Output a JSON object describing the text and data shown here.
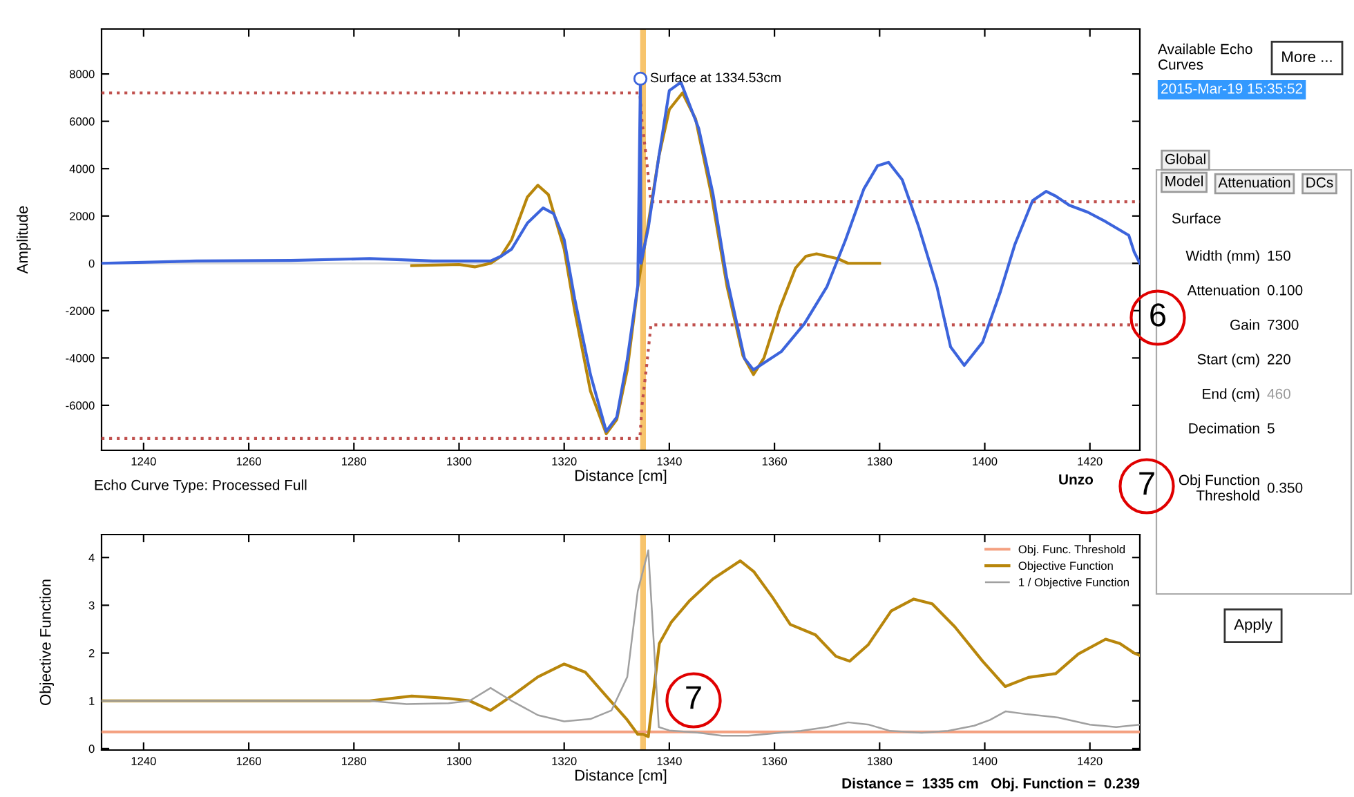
{
  "chart_data": [
    {
      "type": "line",
      "xlabel": "Distance [cm]",
      "ylabel": "Amplitude",
      "xlim": [
        1232,
        1429.5
      ],
      "ylim": [
        -7900,
        9900
      ],
      "xticks": [
        1240,
        1260,
        1280,
        1300,
        1320,
        1340,
        1360,
        1380,
        1400,
        1420
      ],
      "yticks": [
        -6000,
        -4000,
        -2000,
        0,
        2000,
        4000,
        6000,
        8000
      ],
      "ref_lines": [
        {
          "axis": "y",
          "value": 0,
          "color": "#d9d9d9"
        },
        {
          "axis": "x",
          "value": 1335,
          "color": "#f7c46c"
        }
      ],
      "annotations": [
        {
          "text": "Surface at 1334.53cm",
          "x": 1334.5,
          "y": 7800
        },
        "Echo Curve Type: Processed Full"
      ],
      "series": [
        {
          "color": "#c0504d",
          "line_style": "dotted",
          "x": [
            1232,
            1334.4,
            1334.8,
            1335.7,
            1336.5,
            1429.5
          ],
          "values": [
            7200,
            7200,
            6000,
            4300,
            2600,
            2600
          ]
        },
        {
          "color": "#c0504d",
          "line_style": "dotted",
          "x": [
            1232,
            1334.4,
            1334.8,
            1335.7,
            1336.5,
            1429.5
          ],
          "values": [
            -7400,
            -7400,
            -6000,
            -4300,
            -2600,
            -2600
          ]
        },
        {
          "color": "#b8860b",
          "x": [
            1291,
            1300,
            1303,
            1306,
            1308,
            1310,
            1313,
            1315,
            1317,
            1320,
            1322,
            1325,
            1328,
            1330,
            1332,
            1334,
            1336,
            1338,
            1340,
            1342.5,
            1345,
            1348,
            1351,
            1354,
            1356,
            1358,
            1361,
            1364,
            1366,
            1368,
            1372,
            1374,
            1380
          ],
          "values": [
            -100,
            -50,
            -150,
            0,
            300,
            1000,
            2800,
            3300,
            2900,
            600,
            -2000,
            -5400,
            -7200,
            -6600,
            -4500,
            -1000,
            1700,
            4500,
            6500,
            7200,
            6100,
            2900,
            -1000,
            -3900,
            -4700,
            -4000,
            -1900,
            -200,
            300,
            400,
            200,
            0,
            0
          ]
        },
        {
          "color": "#3c64dc",
          "x": [
            1232,
            1250,
            1268,
            1283,
            1295,
            1306,
            1308,
            1310,
            1313,
            1316,
            1318,
            1320,
            1322,
            1325,
            1328,
            1330,
            1332,
            1334,
            1334.5,
            1334.6,
            1336,
            1338,
            1340,
            1342.2,
            1345.6,
            1348.3,
            1350.9,
            1354.3,
            1356,
            1361.3,
            1365.7,
            1370,
            1373.5,
            1377,
            1379.6,
            1381.7,
            1384.3,
            1387.4,
            1390.9,
            1393.5,
            1396.1,
            1399.6,
            1403,
            1405.7,
            1409.1,
            1411.7,
            1413.5,
            1416.1,
            1419.6,
            1423,
            1427.4,
            1428.4,
            1429.5
          ],
          "values": [
            0,
            100,
            120,
            200,
            100,
            100,
            300,
            600,
            1700,
            2340,
            2100,
            1000,
            -1500,
            -4700,
            -7100,
            -6500,
            -4060,
            -940,
            7800,
            0,
            1500,
            4500,
            7300,
            7650,
            5690,
            2940,
            -590,
            -4020,
            -4500,
            -3730,
            -2550,
            -980,
            980,
            3140,
            4120,
            4270,
            3530,
            1570,
            -980,
            -3530,
            -4310,
            -3330,
            -1180,
            780,
            2650,
            3040,
            2840,
            2450,
            2160,
            1760,
            1180,
            490,
            0
          ]
        },
        {
          "type": "scatter",
          "marker": "circle",
          "color": "#3c64dc",
          "x": [
            1334.5
          ],
          "values": [
            7800
          ]
        }
      ]
    },
    {
      "type": "line",
      "xlabel": "Distance [cm]",
      "ylabel": "Objective Function",
      "xlim": [
        1232,
        1429.5
      ],
      "ylim": [
        -0.03,
        4.48
      ],
      "xticks": [
        1240,
        1260,
        1280,
        1300,
        1320,
        1340,
        1360,
        1380,
        1400,
        1420
      ],
      "yticks": [
        0,
        1,
        2,
        3,
        4
      ],
      "legend": "top right",
      "ref_lines": [
        {
          "axis": "x",
          "value": 1335,
          "color": "#f7c46c"
        }
      ],
      "annotations": [
        "7",
        "Distance =  1335 cm   Obj. Function =  0.239"
      ],
      "series": [
        {
          "name": "Obj. Func. Threshold",
          "color": "#f4a080",
          "x": [
            1232,
            1429.5
          ],
          "values": [
            0.35,
            0.35
          ]
        },
        {
          "name": "Objective Function",
          "color": "#b8860b",
          "x": [
            1232,
            1283,
            1291,
            1298,
            1302,
            1306,
            1310,
            1315,
            1320,
            1324,
            1328,
            1332,
            1334,
            1335,
            1336,
            1338.1,
            1340.4,
            1343.9,
            1348.3,
            1353.5,
            1356.1,
            1359.6,
            1363,
            1367.8,
            1371.7,
            1374.3,
            1377.8,
            1382.2,
            1386.5,
            1390,
            1394.3,
            1399.6,
            1403.9,
            1408.3,
            1413.5,
            1417.8,
            1423,
            1425.7,
            1428.4,
            1429.5
          ],
          "values": [
            1,
            1,
            1.1,
            1.05,
            1.0,
            0.8,
            1.1,
            1.5,
            1.77,
            1.6,
            1.1,
            0.6,
            0.3,
            0.3,
            0.25,
            2.2,
            2.65,
            3.1,
            3.55,
            3.93,
            3.7,
            3.17,
            2.6,
            2.38,
            1.93,
            1.83,
            2.17,
            2.88,
            3.13,
            3.03,
            2.55,
            1.83,
            1.3,
            1.49,
            1.57,
            1.98,
            2.29,
            2.2,
            2.0,
            1.95
          ]
        },
        {
          "name": "1 / Objective Function",
          "color": "#a0a0a0",
          "x": [
            1232,
            1283,
            1290,
            1298,
            1302,
            1306,
            1310,
            1315,
            1320,
            1325,
            1329,
            1332,
            1334,
            1336,
            1338,
            1340,
            1345,
            1350,
            1355,
            1360,
            1365,
            1370,
            1374,
            1378,
            1382,
            1388,
            1393,
            1398,
            1401,
            1404,
            1408,
            1414,
            1420,
            1425,
            1429.5
          ],
          "values": [
            1,
            1,
            0.93,
            0.95,
            1.0,
            1.27,
            1.0,
            0.7,
            0.57,
            0.62,
            0.8,
            1.5,
            3.3,
            4.15,
            0.45,
            0.38,
            0.34,
            0.27,
            0.27,
            0.32,
            0.37,
            0.45,
            0.55,
            0.5,
            0.37,
            0.33,
            0.37,
            0.48,
            0.6,
            0.78,
            0.72,
            0.65,
            0.5,
            0.45,
            0.5
          ]
        }
      ]
    },
    {
      "type": "other",
      "annotations": [
        "Available Echo\nCurves",
        "More ...",
        "2015-Mar-19 15:35:52",
        "Global",
        "Model",
        "Attenuation",
        "DCs",
        "Surface",
        "Width (mm)",
        "150",
        "Attenuation",
        "0.100",
        "Gain",
        "7300",
        "Start (cm)",
        "220",
        "End (cm)",
        "460",
        "Decimation",
        "5",
        "Obj Function\nThreshold",
        "0.350",
        "Apply",
        "Unzo",
        "6",
        "7"
      ]
    }
  ]
}
